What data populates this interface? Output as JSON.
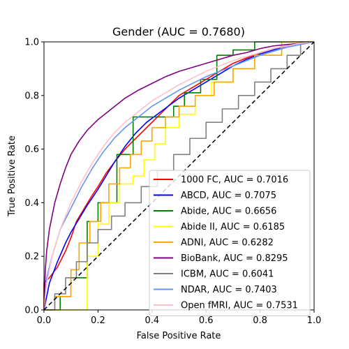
{
  "chart_data": {
    "type": "line",
    "title": "Gender (AUC = 0.7680)",
    "xlabel": "False Positive Rate",
    "ylabel": "True Positive Rate",
    "xlim": [
      0,
      1
    ],
    "ylim": [
      0,
      1
    ],
    "xticks": [
      "0.0",
      "0.2",
      "0.4",
      "0.6",
      "0.8",
      "1.0"
    ],
    "yticks": [
      "0.0",
      "0.2",
      "0.4",
      "0.6",
      "0.8",
      "1.0"
    ],
    "grid": false,
    "legend_position": "lower-right",
    "reference_line": {
      "style": "dashed",
      "color": "#000000",
      "points": [
        [
          0,
          0
        ],
        [
          1,
          1
        ]
      ]
    },
    "series": [
      {
        "name": "1000 FC, AUC = 0.7016",
        "color": "#ff0000",
        "step": false,
        "points": [
          [
            0,
            0
          ],
          [
            0,
            0.1
          ],
          [
            0.02,
            0.12
          ],
          [
            0.05,
            0.16
          ],
          [
            0.08,
            0.22
          ],
          [
            0.1,
            0.27
          ],
          [
            0.12,
            0.33
          ],
          [
            0.15,
            0.38
          ],
          [
            0.18,
            0.43
          ],
          [
            0.2,
            0.46
          ],
          [
            0.23,
            0.51
          ],
          [
            0.26,
            0.55
          ],
          [
            0.3,
            0.6
          ],
          [
            0.34,
            0.64
          ],
          [
            0.38,
            0.68
          ],
          [
            0.42,
            0.72
          ],
          [
            0.46,
            0.76
          ],
          [
            0.5,
            0.8
          ],
          [
            0.55,
            0.83
          ],
          [
            0.6,
            0.86
          ],
          [
            0.65,
            0.89
          ],
          [
            0.7,
            0.92
          ],
          [
            0.75,
            0.94
          ],
          [
            0.8,
            0.96
          ],
          [
            0.85,
            0.975
          ],
          [
            0.9,
            0.985
          ],
          [
            0.95,
            0.995
          ],
          [
            1,
            1
          ]
        ]
      },
      {
        "name": "ABCD, AUC = 0.7075",
        "color": "#0000ff",
        "step": false,
        "points": [
          [
            0,
            0
          ],
          [
            0.02,
            0.1
          ],
          [
            0.05,
            0.18
          ],
          [
            0.08,
            0.25
          ],
          [
            0.1,
            0.29
          ],
          [
            0.13,
            0.34
          ],
          [
            0.16,
            0.39
          ],
          [
            0.2,
            0.45
          ],
          [
            0.23,
            0.5
          ],
          [
            0.26,
            0.55
          ],
          [
            0.3,
            0.61
          ],
          [
            0.34,
            0.66
          ],
          [
            0.38,
            0.7
          ],
          [
            0.42,
            0.73
          ],
          [
            0.46,
            0.76
          ],
          [
            0.5,
            0.79
          ],
          [
            0.55,
            0.82
          ],
          [
            0.6,
            0.85
          ],
          [
            0.65,
            0.88
          ],
          [
            0.7,
            0.91
          ],
          [
            0.75,
            0.935
          ],
          [
            0.8,
            0.955
          ],
          [
            0.85,
            0.97
          ],
          [
            0.9,
            0.985
          ],
          [
            0.95,
            0.995
          ],
          [
            1,
            1
          ]
        ]
      },
      {
        "name": "Abide, AUC = 0.6656",
        "color": "#008000",
        "step": true,
        "points": [
          [
            0,
            0
          ],
          [
            0.06,
            0
          ],
          [
            0.06,
            0.05
          ],
          [
            0.1,
            0.05
          ],
          [
            0.1,
            0.12
          ],
          [
            0.16,
            0.12
          ],
          [
            0.16,
            0.33
          ],
          [
            0.2,
            0.33
          ],
          [
            0.2,
            0.4
          ],
          [
            0.27,
            0.4
          ],
          [
            0.27,
            0.58
          ],
          [
            0.33,
            0.58
          ],
          [
            0.33,
            0.72
          ],
          [
            0.48,
            0.72
          ],
          [
            0.48,
            0.76
          ],
          [
            0.52,
            0.76
          ],
          [
            0.52,
            0.81
          ],
          [
            0.58,
            0.81
          ],
          [
            0.58,
            0.86
          ],
          [
            0.64,
            0.86
          ],
          [
            0.64,
            0.95
          ],
          [
            0.7,
            0.95
          ],
          [
            0.7,
            0.97
          ],
          [
            0.78,
            0.97
          ],
          [
            0.78,
            1
          ],
          [
            1,
            1
          ]
        ]
      },
      {
        "name": "Abide II, AUC = 0.6185",
        "color": "#ffff00",
        "step": true,
        "points": [
          [
            0,
            0
          ],
          [
            0.16,
            0
          ],
          [
            0.16,
            0.2
          ],
          [
            0.2,
            0.2
          ],
          [
            0.2,
            0.32
          ],
          [
            0.24,
            0.32
          ],
          [
            0.24,
            0.4
          ],
          [
            0.28,
            0.4
          ],
          [
            0.28,
            0.47
          ],
          [
            0.33,
            0.47
          ],
          [
            0.33,
            0.5
          ],
          [
            0.37,
            0.5
          ],
          [
            0.37,
            0.56
          ],
          [
            0.41,
            0.56
          ],
          [
            0.41,
            0.62
          ],
          [
            0.45,
            0.62
          ],
          [
            0.45,
            0.68
          ],
          [
            0.5,
            0.68
          ],
          [
            0.5,
            0.73
          ],
          [
            0.56,
            0.73
          ],
          [
            0.56,
            0.8
          ],
          [
            0.62,
            0.8
          ],
          [
            0.62,
            0.85
          ],
          [
            0.7,
            0.85
          ],
          [
            0.7,
            0.9
          ],
          [
            0.78,
            0.9
          ],
          [
            0.78,
            0.95
          ],
          [
            0.88,
            0.95
          ],
          [
            0.88,
            1
          ],
          [
            1,
            1
          ]
        ]
      },
      {
        "name": "ADNI, AUC = 0.6282",
        "color": "#ffa500",
        "step": true,
        "points": [
          [
            0,
            0
          ],
          [
            0.04,
            0
          ],
          [
            0.04,
            0.05
          ],
          [
            0.1,
            0.05
          ],
          [
            0.1,
            0.15
          ],
          [
            0.13,
            0.15
          ],
          [
            0.13,
            0.25
          ],
          [
            0.17,
            0.25
          ],
          [
            0.17,
            0.33
          ],
          [
            0.21,
            0.33
          ],
          [
            0.21,
            0.4
          ],
          [
            0.24,
            0.4
          ],
          [
            0.24,
            0.47
          ],
          [
            0.28,
            0.47
          ],
          [
            0.28,
            0.53
          ],
          [
            0.32,
            0.53
          ],
          [
            0.32,
            0.58
          ],
          [
            0.36,
            0.58
          ],
          [
            0.36,
            0.63
          ],
          [
            0.4,
            0.63
          ],
          [
            0.4,
            0.68
          ],
          [
            0.45,
            0.68
          ],
          [
            0.45,
            0.72
          ],
          [
            0.5,
            0.72
          ],
          [
            0.5,
            0.76
          ],
          [
            0.56,
            0.76
          ],
          [
            0.56,
            0.8
          ],
          [
            0.63,
            0.8
          ],
          [
            0.63,
            0.85
          ],
          [
            0.7,
            0.85
          ],
          [
            0.7,
            0.9
          ],
          [
            0.78,
            0.9
          ],
          [
            0.78,
            0.95
          ],
          [
            0.88,
            0.95
          ],
          [
            0.88,
            1
          ],
          [
            1,
            1
          ]
        ]
      },
      {
        "name": "BioBank, AUC = 0.8295",
        "color": "#800080",
        "step": false,
        "points": [
          [
            0,
            0
          ],
          [
            0.005,
            0.15
          ],
          [
            0.01,
            0.22
          ],
          [
            0.02,
            0.3
          ],
          [
            0.04,
            0.4
          ],
          [
            0.06,
            0.47
          ],
          [
            0.08,
            0.53
          ],
          [
            0.1,
            0.58
          ],
          [
            0.13,
            0.63
          ],
          [
            0.16,
            0.67
          ],
          [
            0.2,
            0.71
          ],
          [
            0.25,
            0.75
          ],
          [
            0.3,
            0.79
          ],
          [
            0.35,
            0.82
          ],
          [
            0.4,
            0.845
          ],
          [
            0.45,
            0.87
          ],
          [
            0.5,
            0.89
          ],
          [
            0.55,
            0.905
          ],
          [
            0.6,
            0.92
          ],
          [
            0.65,
            0.935
          ],
          [
            0.7,
            0.95
          ],
          [
            0.75,
            0.96
          ],
          [
            0.8,
            0.975
          ],
          [
            0.85,
            0.985
          ],
          [
            0.9,
            0.99
          ],
          [
            1,
            1
          ]
        ]
      },
      {
        "name": "ICBM, AUC = 0.6041",
        "color": "#808080",
        "step": true,
        "points": [
          [
            0,
            0
          ],
          [
            0.04,
            0
          ],
          [
            0.04,
            0.06
          ],
          [
            0.08,
            0.06
          ],
          [
            0.08,
            0.12
          ],
          [
            0.12,
            0.12
          ],
          [
            0.12,
            0.18
          ],
          [
            0.16,
            0.18
          ],
          [
            0.16,
            0.25
          ],
          [
            0.2,
            0.25
          ],
          [
            0.2,
            0.3
          ],
          [
            0.25,
            0.3
          ],
          [
            0.25,
            0.35
          ],
          [
            0.3,
            0.35
          ],
          [
            0.3,
            0.4
          ],
          [
            0.36,
            0.4
          ],
          [
            0.36,
            0.46
          ],
          [
            0.42,
            0.46
          ],
          [
            0.42,
            0.52
          ],
          [
            0.48,
            0.52
          ],
          [
            0.48,
            0.58
          ],
          [
            0.54,
            0.58
          ],
          [
            0.54,
            0.64
          ],
          [
            0.6,
            0.64
          ],
          [
            0.6,
            0.7
          ],
          [
            0.66,
            0.7
          ],
          [
            0.66,
            0.75
          ],
          [
            0.72,
            0.75
          ],
          [
            0.72,
            0.8
          ],
          [
            0.78,
            0.8
          ],
          [
            0.78,
            0.85
          ],
          [
            0.84,
            0.85
          ],
          [
            0.84,
            0.9
          ],
          [
            0.9,
            0.9
          ],
          [
            0.9,
            0.95
          ],
          [
            0.95,
            0.95
          ],
          [
            0.95,
            1
          ],
          [
            1,
            1
          ]
        ]
      },
      {
        "name": "NDAR, AUC = 0.7403",
        "color": "#6495ed",
        "step": false,
        "points": [
          [
            0,
            0
          ],
          [
            0.01,
            0.12
          ],
          [
            0.03,
            0.2
          ],
          [
            0.06,
            0.3
          ],
          [
            0.1,
            0.38
          ],
          [
            0.14,
            0.46
          ],
          [
            0.18,
            0.53
          ],
          [
            0.22,
            0.59
          ],
          [
            0.26,
            0.64
          ],
          [
            0.3,
            0.68
          ],
          [
            0.35,
            0.72
          ],
          [
            0.4,
            0.76
          ],
          [
            0.45,
            0.79
          ],
          [
            0.5,
            0.82
          ],
          [
            0.55,
            0.845
          ],
          [
            0.6,
            0.87
          ],
          [
            0.65,
            0.89
          ],
          [
            0.7,
            0.91
          ],
          [
            0.75,
            0.93
          ],
          [
            0.8,
            0.95
          ],
          [
            0.85,
            0.965
          ],
          [
            0.9,
            0.98
          ],
          [
            0.95,
            0.99
          ],
          [
            1,
            1
          ]
        ]
      },
      {
        "name": "Open fMRI, AUC = 0.7531",
        "color": "#ffc0cb",
        "step": false,
        "points": [
          [
            0,
            0
          ],
          [
            0.01,
            0.1
          ],
          [
            0.03,
            0.2
          ],
          [
            0.06,
            0.3
          ],
          [
            0.1,
            0.4
          ],
          [
            0.14,
            0.48
          ],
          [
            0.18,
            0.55
          ],
          [
            0.22,
            0.61
          ],
          [
            0.26,
            0.66
          ],
          [
            0.3,
            0.7
          ],
          [
            0.35,
            0.74
          ],
          [
            0.4,
            0.78
          ],
          [
            0.45,
            0.81
          ],
          [
            0.5,
            0.84
          ],
          [
            0.55,
            0.865
          ],
          [
            0.6,
            0.89
          ],
          [
            0.65,
            0.91
          ],
          [
            0.7,
            0.93
          ],
          [
            0.75,
            0.945
          ],
          [
            0.8,
            0.96
          ],
          [
            0.85,
            0.975
          ],
          [
            0.9,
            0.985
          ],
          [
            0.95,
            0.995
          ],
          [
            1,
            1
          ]
        ]
      }
    ]
  }
}
